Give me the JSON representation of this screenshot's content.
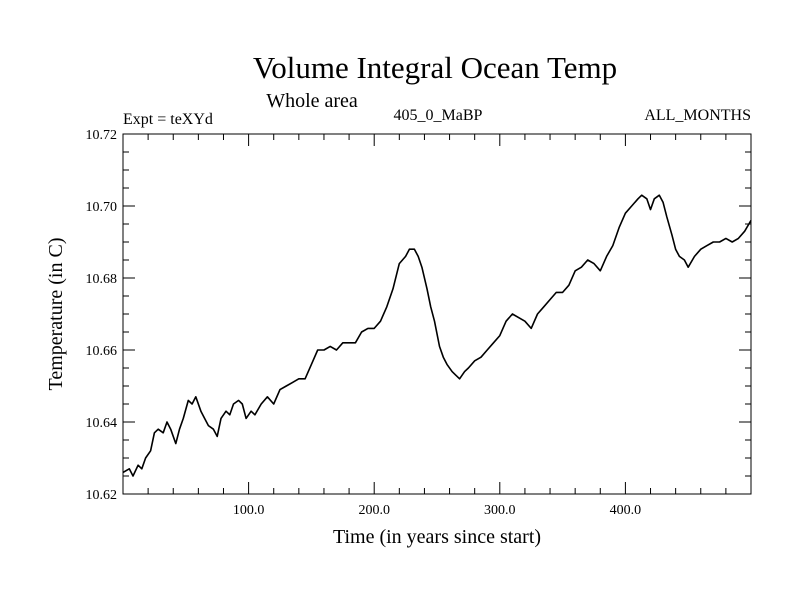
{
  "chart_data": {
    "type": "line",
    "title": "Volume Integral Ocean Temp",
    "subtitle": "Whole area",
    "header_left": "Expt = teXYd",
    "header_center": "405_0_MaBP",
    "header_right": "ALL_MONTHS",
    "xlabel": "Time (in years since start)",
    "ylabel": "Temperature (in C)",
    "xlim": [
      0,
      500
    ],
    "ylim": [
      10.62,
      10.72
    ],
    "x_ticks": [
      100,
      200,
      300,
      400
    ],
    "x_tick_labels": [
      "100.0",
      "200.0",
      "300.0",
      "400.0"
    ],
    "y_ticks": [
      10.62,
      10.64,
      10.66,
      10.68,
      10.7,
      10.72
    ],
    "y_tick_labels": [
      "10.62",
      "10.64",
      "10.66",
      "10.68",
      "10.70",
      "10.72"
    ],
    "grid": false,
    "line_color": "#000000",
    "series": [
      {
        "x": [
          0,
          5,
          8,
          12,
          15,
          18,
          22,
          25,
          28,
          32,
          35,
          38,
          42,
          45,
          48,
          52,
          55,
          58,
          62,
          65,
          68,
          72,
          75,
          78,
          82,
          85,
          88,
          92,
          95,
          98,
          102,
          105,
          110,
          115,
          120,
          125,
          130,
          135,
          140,
          145,
          150,
          155,
          160,
          165,
          170,
          175,
          180,
          185,
          190,
          195,
          200,
          205,
          210,
          215,
          220,
          225,
          228,
          232,
          235,
          238,
          242,
          245,
          248,
          252,
          255,
          258,
          262,
          265,
          268,
          272,
          275,
          280,
          285,
          290,
          295,
          300,
          305,
          310,
          315,
          320,
          325,
          330,
          335,
          340,
          345,
          350,
          355,
          360,
          365,
          370,
          375,
          380,
          385,
          390,
          395,
          400,
          405,
          410,
          413,
          417,
          420,
          423,
          427,
          430,
          433,
          437,
          440,
          443,
          447,
          450,
          455,
          460,
          465,
          470,
          475,
          480,
          485,
          490,
          495,
          500
        ],
        "y": [
          10.626,
          10.627,
          10.625,
          10.628,
          10.627,
          10.63,
          10.632,
          10.637,
          10.638,
          10.637,
          10.64,
          10.638,
          10.634,
          10.638,
          10.641,
          10.646,
          10.645,
          10.647,
          10.643,
          10.641,
          10.639,
          10.638,
          10.636,
          10.641,
          10.643,
          10.642,
          10.645,
          10.646,
          10.645,
          10.641,
          10.643,
          10.642,
          10.645,
          10.647,
          10.645,
          10.649,
          10.65,
          10.651,
          10.652,
          10.652,
          10.656,
          10.66,
          10.66,
          10.661,
          10.66,
          10.662,
          10.662,
          10.662,
          10.665,
          10.666,
          10.666,
          10.668,
          10.672,
          10.677,
          10.684,
          10.686,
          10.688,
          10.688,
          10.686,
          10.683,
          10.677,
          10.672,
          10.668,
          10.661,
          10.658,
          10.656,
          10.654,
          10.653,
          10.652,
          10.654,
          10.655,
          10.657,
          10.658,
          10.66,
          10.662,
          10.664,
          10.668,
          10.67,
          10.669,
          10.668,
          10.666,
          10.67,
          10.672,
          10.674,
          10.676,
          10.676,
          10.678,
          10.682,
          10.683,
          10.685,
          10.684,
          10.682,
          10.686,
          10.689,
          10.694,
          10.698,
          10.7,
          10.702,
          10.703,
          10.702,
          10.699,
          10.702,
          10.703,
          10.701,
          10.697,
          10.692,
          10.688,
          10.686,
          10.685,
          10.683,
          10.686,
          10.688,
          10.689,
          10.69,
          10.69,
          10.691,
          10.69,
          10.691,
          10.693,
          10.696
        ]
      }
    ]
  }
}
